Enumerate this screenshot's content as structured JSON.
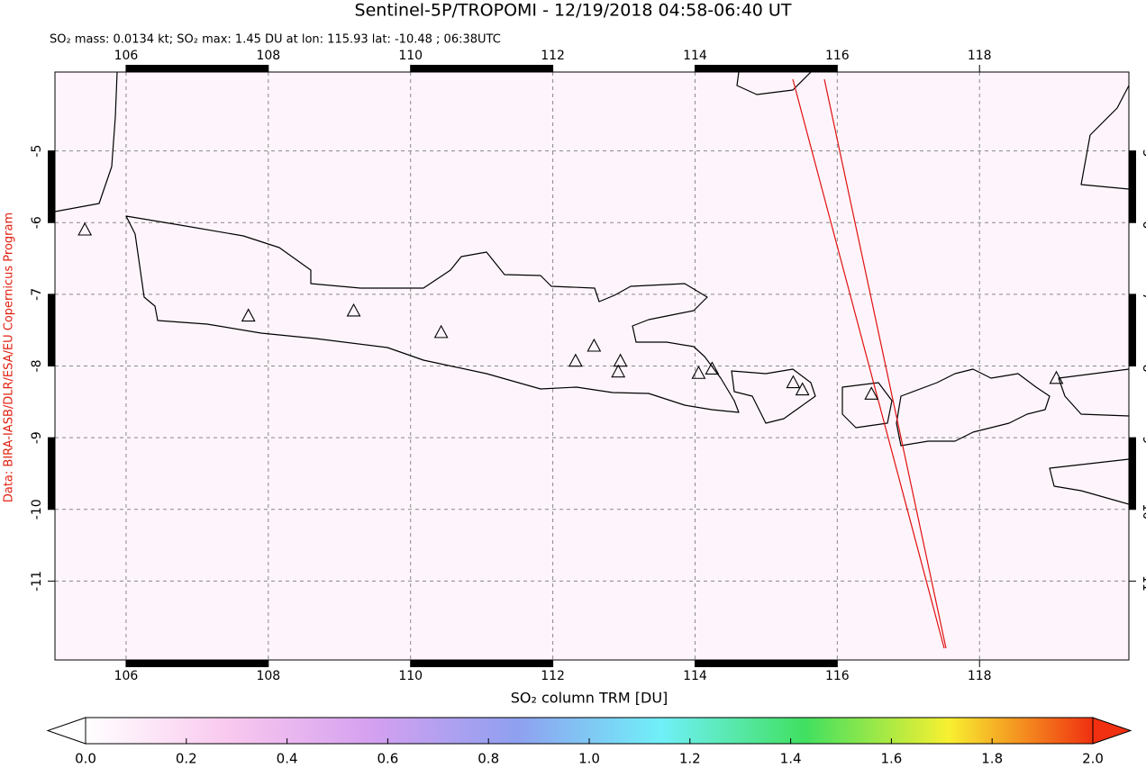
{
  "chart_data": {
    "type": "map",
    "title": "Sentinel-5P/TROPOMI - 12/19/2018 04:58-06:40 UT",
    "subtitle": "SO₂ mass: 0.0134 kt; SO₂ max: 1.45 DU at lon: 115.93 lat: -10.48 ; 06:38UTC",
    "credit": "Data: BIRA-IASB/DLR/ESA/EU Copernicus Program",
    "xlim": [
      105,
      120.1
    ],
    "ylim": [
      -12.1,
      -3.9
    ],
    "xticks": [
      106,
      108,
      110,
      112,
      114,
      116,
      118
    ],
    "yticks": [
      -5,
      -6,
      -7,
      -8,
      -9,
      -10,
      -11
    ],
    "grid": true,
    "volcanoes": {
      "x": [
        105.42,
        107.72,
        109.2,
        110.43,
        112.32,
        112.58,
        112.95,
        112.92,
        114.05,
        114.24,
        115.38,
        115.51,
        116.48,
        119.08
      ],
      "y": [
        -6.11,
        -7.31,
        -7.24,
        -7.54,
        -7.94,
        -7.73,
        -7.94,
        -8.09,
        -8.11,
        -8.05,
        -8.24,
        -8.34,
        -8.4,
        -8.18
      ]
    },
    "colorbar": {
      "label": "SO₂ column TRM [DU]",
      "lim": [
        0,
        2
      ],
      "ticks": [
        {
          "value": 0,
          "label": "0.0"
        },
        0.2,
        0.4,
        0.6,
        0.8,
        {
          "value": 1,
          "label": "1.0"
        },
        1.2,
        1.4,
        1.6,
        1.8,
        {
          "value": 2,
          "label": "2.0"
        }
      ],
      "colors": [
        "#ffffff",
        "#f9c8ee",
        "#d4a0f0",
        "#8fa0f0",
        "#70f0f8",
        "#40e060",
        "#f8f030",
        "#f03010"
      ]
    }
  }
}
